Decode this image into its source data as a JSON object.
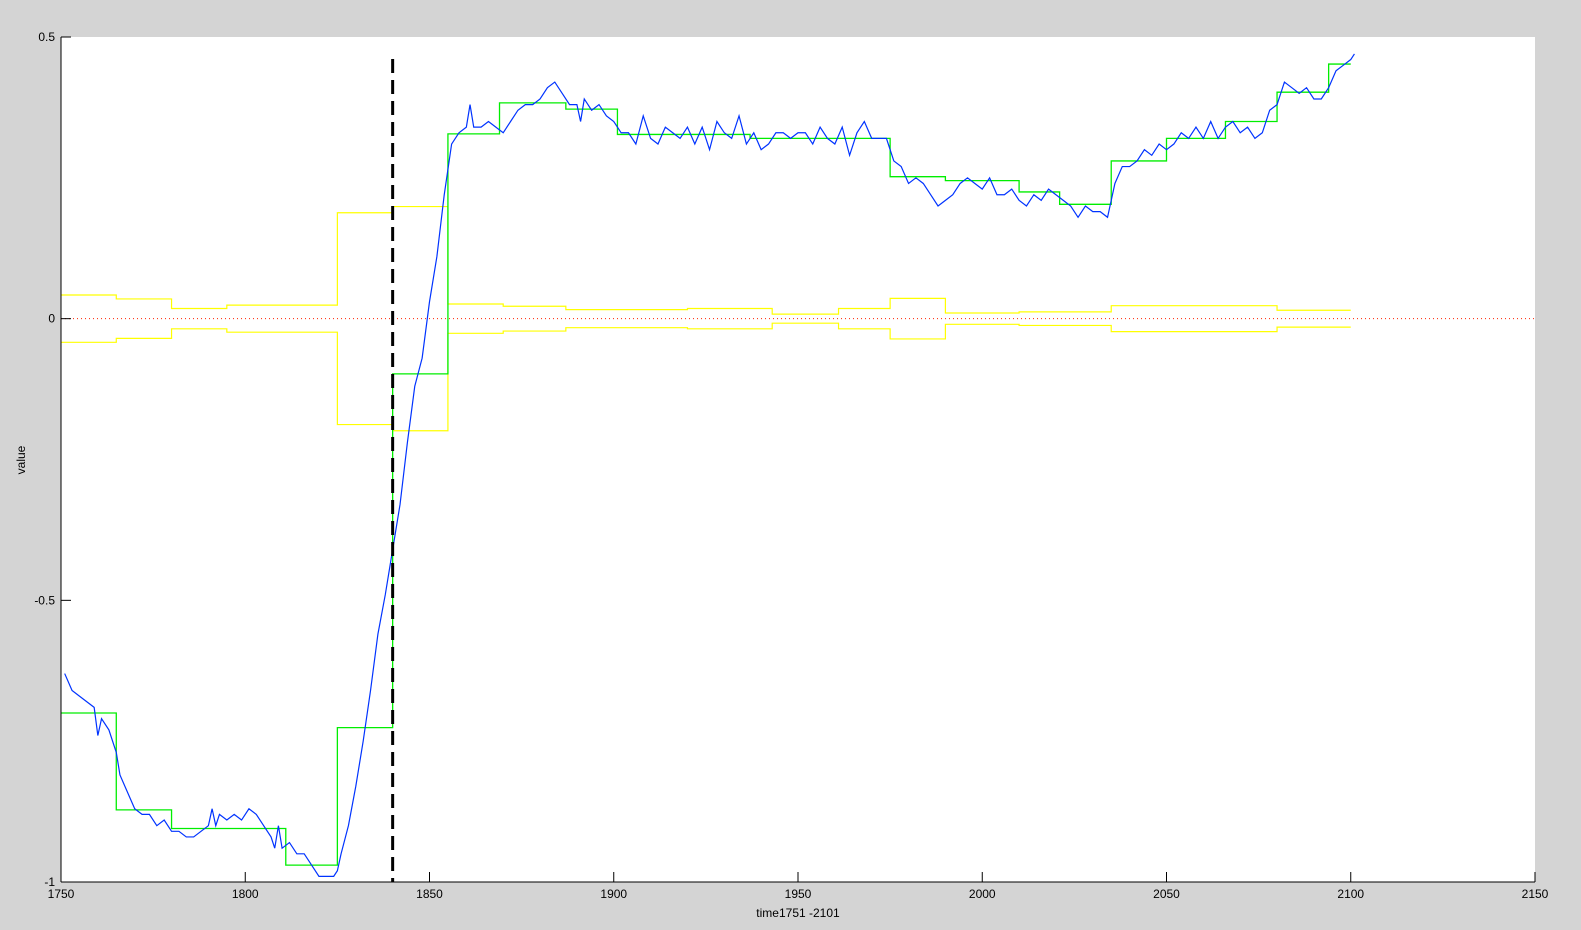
{
  "chart_data": {
    "type": "line",
    "title": "",
    "xlabel": "time1751 -2101",
    "ylabel": "value",
    "xlim": [
      1750,
      2150
    ],
    "ylim": [
      -1,
      0.5
    ],
    "xticks": [
      "1750",
      "1800",
      "1850",
      "1900",
      "1950",
      "2000",
      "2050",
      "2100",
      "2150"
    ],
    "yticks": [
      "0.5",
      "0",
      "-0.5",
      "-1"
    ],
    "grid": false,
    "colors": {
      "series": "#0033ff",
      "steps": "#00ee00",
      "band": "#ffff00",
      "zero_line": "#ff2200",
      "marker_line": "#000000",
      "background": "#d4d4d4"
    },
    "vertical_marker_x": 1840,
    "zero_line_y": 0,
    "series": {
      "x": [
        1751,
        1753,
        1755,
        1757,
        1759,
        1760,
        1761,
        1763,
        1765,
        1766,
        1768,
        1770,
        1772,
        1774,
        1776,
        1778,
        1780,
        1782,
        1784,
        1786,
        1788,
        1790,
        1791,
        1792,
        1793,
        1795,
        1797,
        1799,
        1801,
        1803,
        1805,
        1807,
        1808,
        1809,
        1810,
        1812,
        1814,
        1816,
        1818,
        1820,
        1822,
        1824,
        1825,
        1826,
        1828,
        1830,
        1832,
        1834,
        1836,
        1838,
        1840,
        1842,
        1844,
        1846,
        1848,
        1850,
        1852,
        1854,
        1856,
        1858,
        1860,
        1861,
        1862,
        1864,
        1866,
        1868,
        1870,
        1872,
        1874,
        1876,
        1878,
        1880,
        1882,
        1884,
        1886,
        1888,
        1890,
        1891,
        1892,
        1894,
        1896,
        1898,
        1900,
        1902,
        1904,
        1906,
        1908,
        1910,
        1912,
        1914,
        1916,
        1918,
        1920,
        1922,
        1924,
        1926,
        1928,
        1930,
        1932,
        1934,
        1936,
        1938,
        1940,
        1942,
        1944,
        1946,
        1948,
        1950,
        1952,
        1954,
        1956,
        1958,
        1960,
        1962,
        1964,
        1966,
        1968,
        1970,
        1972,
        1974,
        1976,
        1978,
        1980,
        1982,
        1984,
        1986,
        1988,
        1990,
        1992,
        1994,
        1996,
        1998,
        2000,
        2002,
        2004,
        2006,
        2008,
        2010,
        2012,
        2014,
        2016,
        2018,
        2020,
        2022,
        2024,
        2026,
        2028,
        2030,
        2032,
        2034,
        2036,
        2038,
        2040,
        2042,
        2044,
        2046,
        2048,
        2050,
        2052,
        2054,
        2056,
        2058,
        2060,
        2062,
        2064,
        2066,
        2068,
        2070,
        2072,
        2074,
        2076,
        2078,
        2080,
        2082,
        2084,
        2086,
        2088,
        2090,
        2092,
        2094,
        2096,
        2098,
        2100,
        2101
      ],
      "y": [
        -0.63,
        -0.66,
        -0.67,
        -0.68,
        -0.69,
        -0.74,
        -0.71,
        -0.73,
        -0.77,
        -0.81,
        -0.84,
        -0.87,
        -0.88,
        -0.88,
        -0.9,
        -0.89,
        -0.91,
        -0.91,
        -0.92,
        -0.92,
        -0.91,
        -0.9,
        -0.87,
        -0.9,
        -0.88,
        -0.89,
        -0.88,
        -0.89,
        -0.87,
        -0.88,
        -0.9,
        -0.92,
        -0.94,
        -0.9,
        -0.94,
        -0.93,
        -0.95,
        -0.95,
        -0.97,
        -0.99,
        -0.99,
        -0.99,
        -0.98,
        -0.95,
        -0.9,
        -0.83,
        -0.75,
        -0.66,
        -0.56,
        -0.49,
        -0.41,
        -0.33,
        -0.22,
        -0.12,
        -0.07,
        0.03,
        0.11,
        0.22,
        0.31,
        0.33,
        0.34,
        0.38,
        0.34,
        0.34,
        0.35,
        0.34,
        0.33,
        0.35,
        0.37,
        0.38,
        0.38,
        0.39,
        0.41,
        0.42,
        0.4,
        0.38,
        0.38,
        0.35,
        0.39,
        0.37,
        0.38,
        0.36,
        0.35,
        0.33,
        0.33,
        0.31,
        0.36,
        0.32,
        0.31,
        0.34,
        0.33,
        0.32,
        0.34,
        0.31,
        0.34,
        0.3,
        0.35,
        0.33,
        0.32,
        0.36,
        0.31,
        0.33,
        0.3,
        0.31,
        0.33,
        0.33,
        0.32,
        0.33,
        0.33,
        0.31,
        0.34,
        0.32,
        0.31,
        0.34,
        0.29,
        0.33,
        0.35,
        0.32,
        0.32,
        0.32,
        0.28,
        0.27,
        0.24,
        0.25,
        0.24,
        0.22,
        0.2,
        0.21,
        0.22,
        0.24,
        0.25,
        0.24,
        0.23,
        0.25,
        0.22,
        0.22,
        0.23,
        0.21,
        0.2,
        0.22,
        0.21,
        0.23,
        0.22,
        0.21,
        0.2,
        0.18,
        0.2,
        0.19,
        0.19,
        0.18,
        0.24,
        0.27,
        0.27,
        0.28,
        0.3,
        0.29,
        0.31,
        0.3,
        0.31,
        0.33,
        0.32,
        0.34,
        0.32,
        0.35,
        0.32,
        0.34,
        0.35,
        0.33,
        0.34,
        0.32,
        0.33,
        0.37,
        0.38,
        0.42,
        0.41,
        0.4,
        0.41,
        0.39,
        0.39,
        0.41,
        0.44,
        0.45,
        0.46,
        0.47
      ]
    },
    "steps": [
      {
        "from": 1750,
        "to": 1765,
        "value": -0.7
      },
      {
        "from": 1765,
        "to": 1780,
        "value": -0.872
      },
      {
        "from": 1780,
        "to": 1811,
        "value": -0.905
      },
      {
        "from": 1811,
        "to": 1825,
        "value": -0.97
      },
      {
        "from": 1825,
        "to": 1840,
        "value": -0.726
      },
      {
        "from": 1840,
        "to": 1855,
        "value": -0.098
      },
      {
        "from": 1855,
        "to": 1869,
        "value": 0.328
      },
      {
        "from": 1869,
        "to": 1887,
        "value": 0.383
      },
      {
        "from": 1887,
        "to": 1901,
        "value": 0.372
      },
      {
        "from": 1901,
        "to": 1937,
        "value": 0.327
      },
      {
        "from": 1937,
        "to": 1975,
        "value": 0.32
      },
      {
        "from": 1975,
        "to": 1990,
        "value": 0.252
      },
      {
        "from": 1990,
        "to": 2010,
        "value": 0.245
      },
      {
        "from": 2010,
        "to": 2021,
        "value": 0.225
      },
      {
        "from": 2021,
        "to": 2035,
        "value": 0.203
      },
      {
        "from": 2035,
        "to": 2050,
        "value": 0.28
      },
      {
        "from": 2050,
        "to": 2066,
        "value": 0.32
      },
      {
        "from": 2066,
        "to": 2080,
        "value": 0.35
      },
      {
        "from": 2080,
        "to": 2094,
        "value": 0.402
      },
      {
        "from": 2094,
        "to": 2100,
        "value": 0.452
      }
    ],
    "band": [
      {
        "from": 1750,
        "to": 1765,
        "value": 0.042
      },
      {
        "from": 1765,
        "to": 1780,
        "value": 0.035
      },
      {
        "from": 1780,
        "to": 1795,
        "value": 0.018
      },
      {
        "from": 1795,
        "to": 1825,
        "value": 0.024
      },
      {
        "from": 1825,
        "to": 1840,
        "value": 0.188
      },
      {
        "from": 1840,
        "to": 1855,
        "value": 0.199
      },
      {
        "from": 1855,
        "to": 1870,
        "value": 0.026
      },
      {
        "from": 1870,
        "to": 1887,
        "value": 0.022
      },
      {
        "from": 1887,
        "to": 1920,
        "value": 0.016
      },
      {
        "from": 1920,
        "to": 1943,
        "value": 0.018
      },
      {
        "from": 1943,
        "to": 1961,
        "value": 0.008
      },
      {
        "from": 1961,
        "to": 1975,
        "value": 0.018
      },
      {
        "from": 1975,
        "to": 1990,
        "value": 0.036
      },
      {
        "from": 1990,
        "to": 2010,
        "value": 0.01
      },
      {
        "from": 2010,
        "to": 2035,
        "value": 0.012
      },
      {
        "from": 2035,
        "to": 2080,
        "value": 0.023
      },
      {
        "from": 2080,
        "to": 2100,
        "value": 0.015
      }
    ]
  }
}
